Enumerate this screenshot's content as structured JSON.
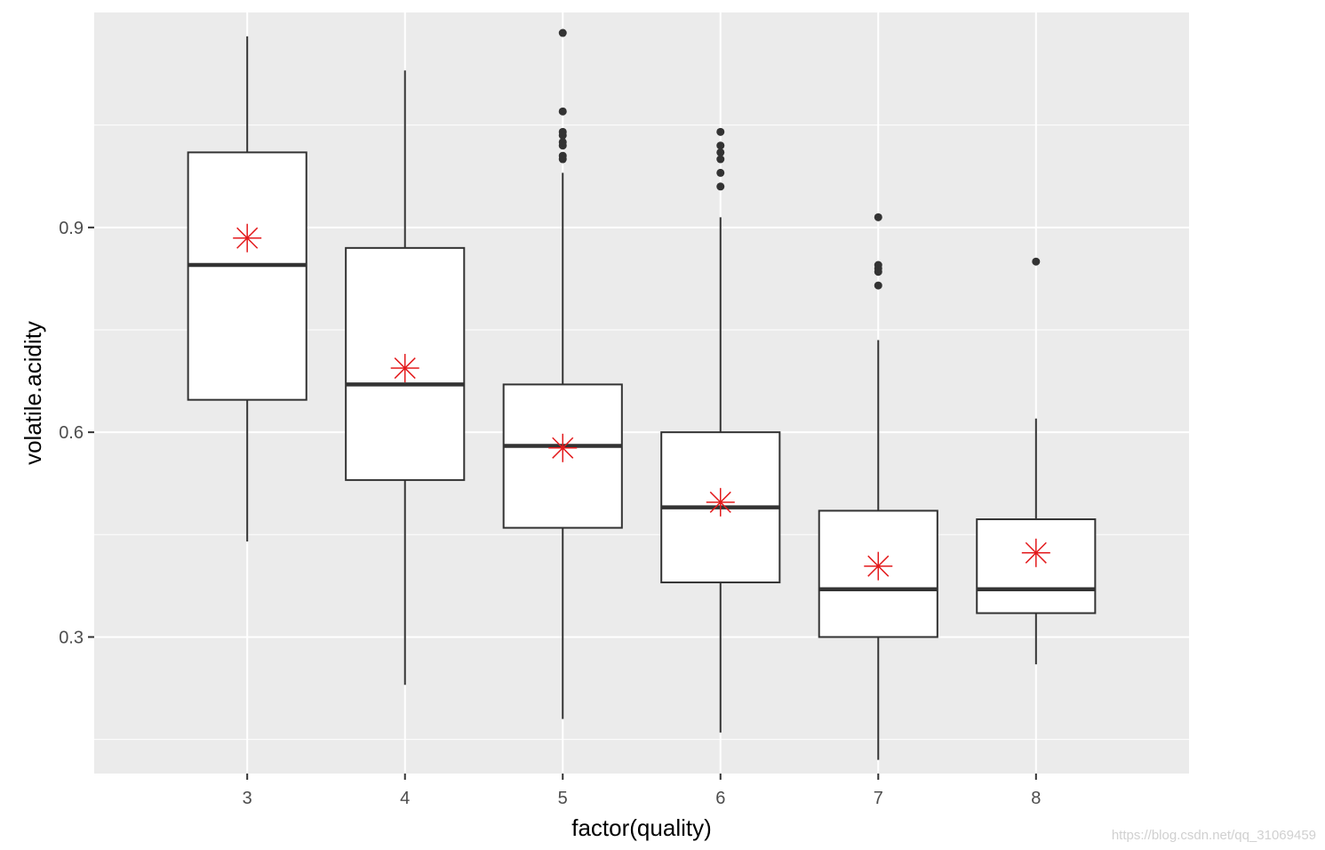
{
  "chart_data": {
    "type": "box",
    "xlabel": "factor(quality)",
    "ylabel": "volatile.acidity",
    "categories": [
      "3",
      "4",
      "5",
      "6",
      "7",
      "8"
    ],
    "y_ticks": [
      0.3,
      0.6,
      0.9
    ],
    "y_tick_labels": [
      "0.3",
      "0.6",
      "0.9"
    ],
    "ylim": [
      0.1,
      1.215
    ],
    "grid": true,
    "panel_background": "#ebebeb",
    "grid_color": "#ffffff",
    "box_fill": "#ffffff",
    "box_stroke": "#333333",
    "mean_marker_color": "#e31a1c",
    "outlier_color": "#333333",
    "boxes": [
      {
        "category": "3",
        "whisker_low": 0.44,
        "q1": 0.6475,
        "median": 0.845,
        "q3": 1.01,
        "whisker_high": 1.18,
        "mean": 0.8845,
        "outliers": []
      },
      {
        "category": "4",
        "whisker_low": 0.23,
        "q1": 0.53,
        "median": 0.67,
        "q3": 0.87,
        "whisker_high": 1.13,
        "mean": 0.6939,
        "outliers": []
      },
      {
        "category": "5",
        "whisker_low": 0.18,
        "q1": 0.46,
        "median": 0.58,
        "q3": 0.67,
        "whisker_high": 0.98,
        "mean": 0.577,
        "outliers": [
          1.0,
          1.005,
          1.02,
          1.025,
          1.035,
          1.04,
          1.07,
          1.185
        ]
      },
      {
        "category": "6",
        "whisker_low": 0.16,
        "q1": 0.38,
        "median": 0.49,
        "q3": 0.6,
        "whisker_high": 0.915,
        "mean": 0.4975,
        "outliers": [
          0.96,
          0.98,
          1.0,
          1.01,
          1.02,
          1.04
        ]
      },
      {
        "category": "7",
        "whisker_low": 0.12,
        "q1": 0.3,
        "median": 0.37,
        "q3": 0.485,
        "whisker_high": 0.735,
        "mean": 0.4039,
        "outliers": [
          0.815,
          0.835,
          0.84,
          0.845,
          0.915
        ]
      },
      {
        "category": "8",
        "whisker_low": 0.26,
        "q1": 0.335,
        "median": 0.37,
        "q3": 0.4725,
        "whisker_high": 0.62,
        "mean": 0.4233,
        "outliers": [
          0.85
        ]
      }
    ]
  },
  "watermark": "https://blog.csdn.net/qq_31069459"
}
